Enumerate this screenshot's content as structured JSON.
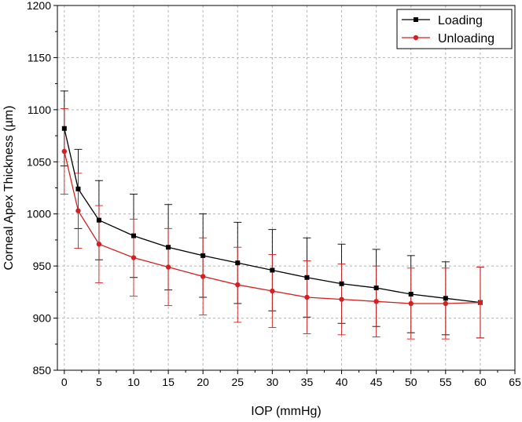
{
  "chart_data": {
    "type": "line",
    "title": "",
    "xlabel": "IOP (mmHg)",
    "ylabel": "Corneal Apex Thickness (µm)",
    "xlim": [
      -1,
      65
    ],
    "ylim": [
      850,
      1200
    ],
    "xticks": [
      0,
      5,
      10,
      15,
      20,
      25,
      30,
      35,
      40,
      45,
      50,
      55,
      60,
      65
    ],
    "yticks": [
      850,
      900,
      950,
      1000,
      1050,
      1100,
      1150,
      1200
    ],
    "grid": true,
    "legend_position": "top-right",
    "x": [
      0,
      2,
      5,
      10,
      15,
      20,
      25,
      30,
      35,
      40,
      45,
      50,
      55,
      60
    ],
    "series": [
      {
        "name": "Loading",
        "color": "#000000",
        "marker": "square",
        "values": [
          1082,
          1024,
          994,
          979,
          968,
          960,
          953,
          946,
          939,
          933,
          929,
          923,
          919,
          915
        ],
        "error_plus": [
          36,
          38,
          38,
          40,
          41,
          40,
          39,
          39,
          38,
          38,
          37,
          37,
          35,
          34
        ],
        "error_minus": [
          36,
          38,
          38,
          40,
          41,
          40,
          39,
          39,
          38,
          38,
          37,
          37,
          35,
          34
        ]
      },
      {
        "name": "Unloading",
        "color": "#d42020",
        "marker": "circle",
        "values": [
          1060,
          1003,
          971,
          958,
          949,
          940,
          932,
          926,
          920,
          918,
          916,
          914,
          914,
          915
        ],
        "error_plus": [
          41,
          36,
          37,
          37,
          37,
          37,
          36,
          35,
          35,
          34,
          34,
          34,
          34,
          34
        ],
        "error_minus": [
          41,
          36,
          37,
          37,
          37,
          37,
          36,
          35,
          35,
          34,
          34,
          34,
          34,
          34
        ]
      }
    ]
  }
}
